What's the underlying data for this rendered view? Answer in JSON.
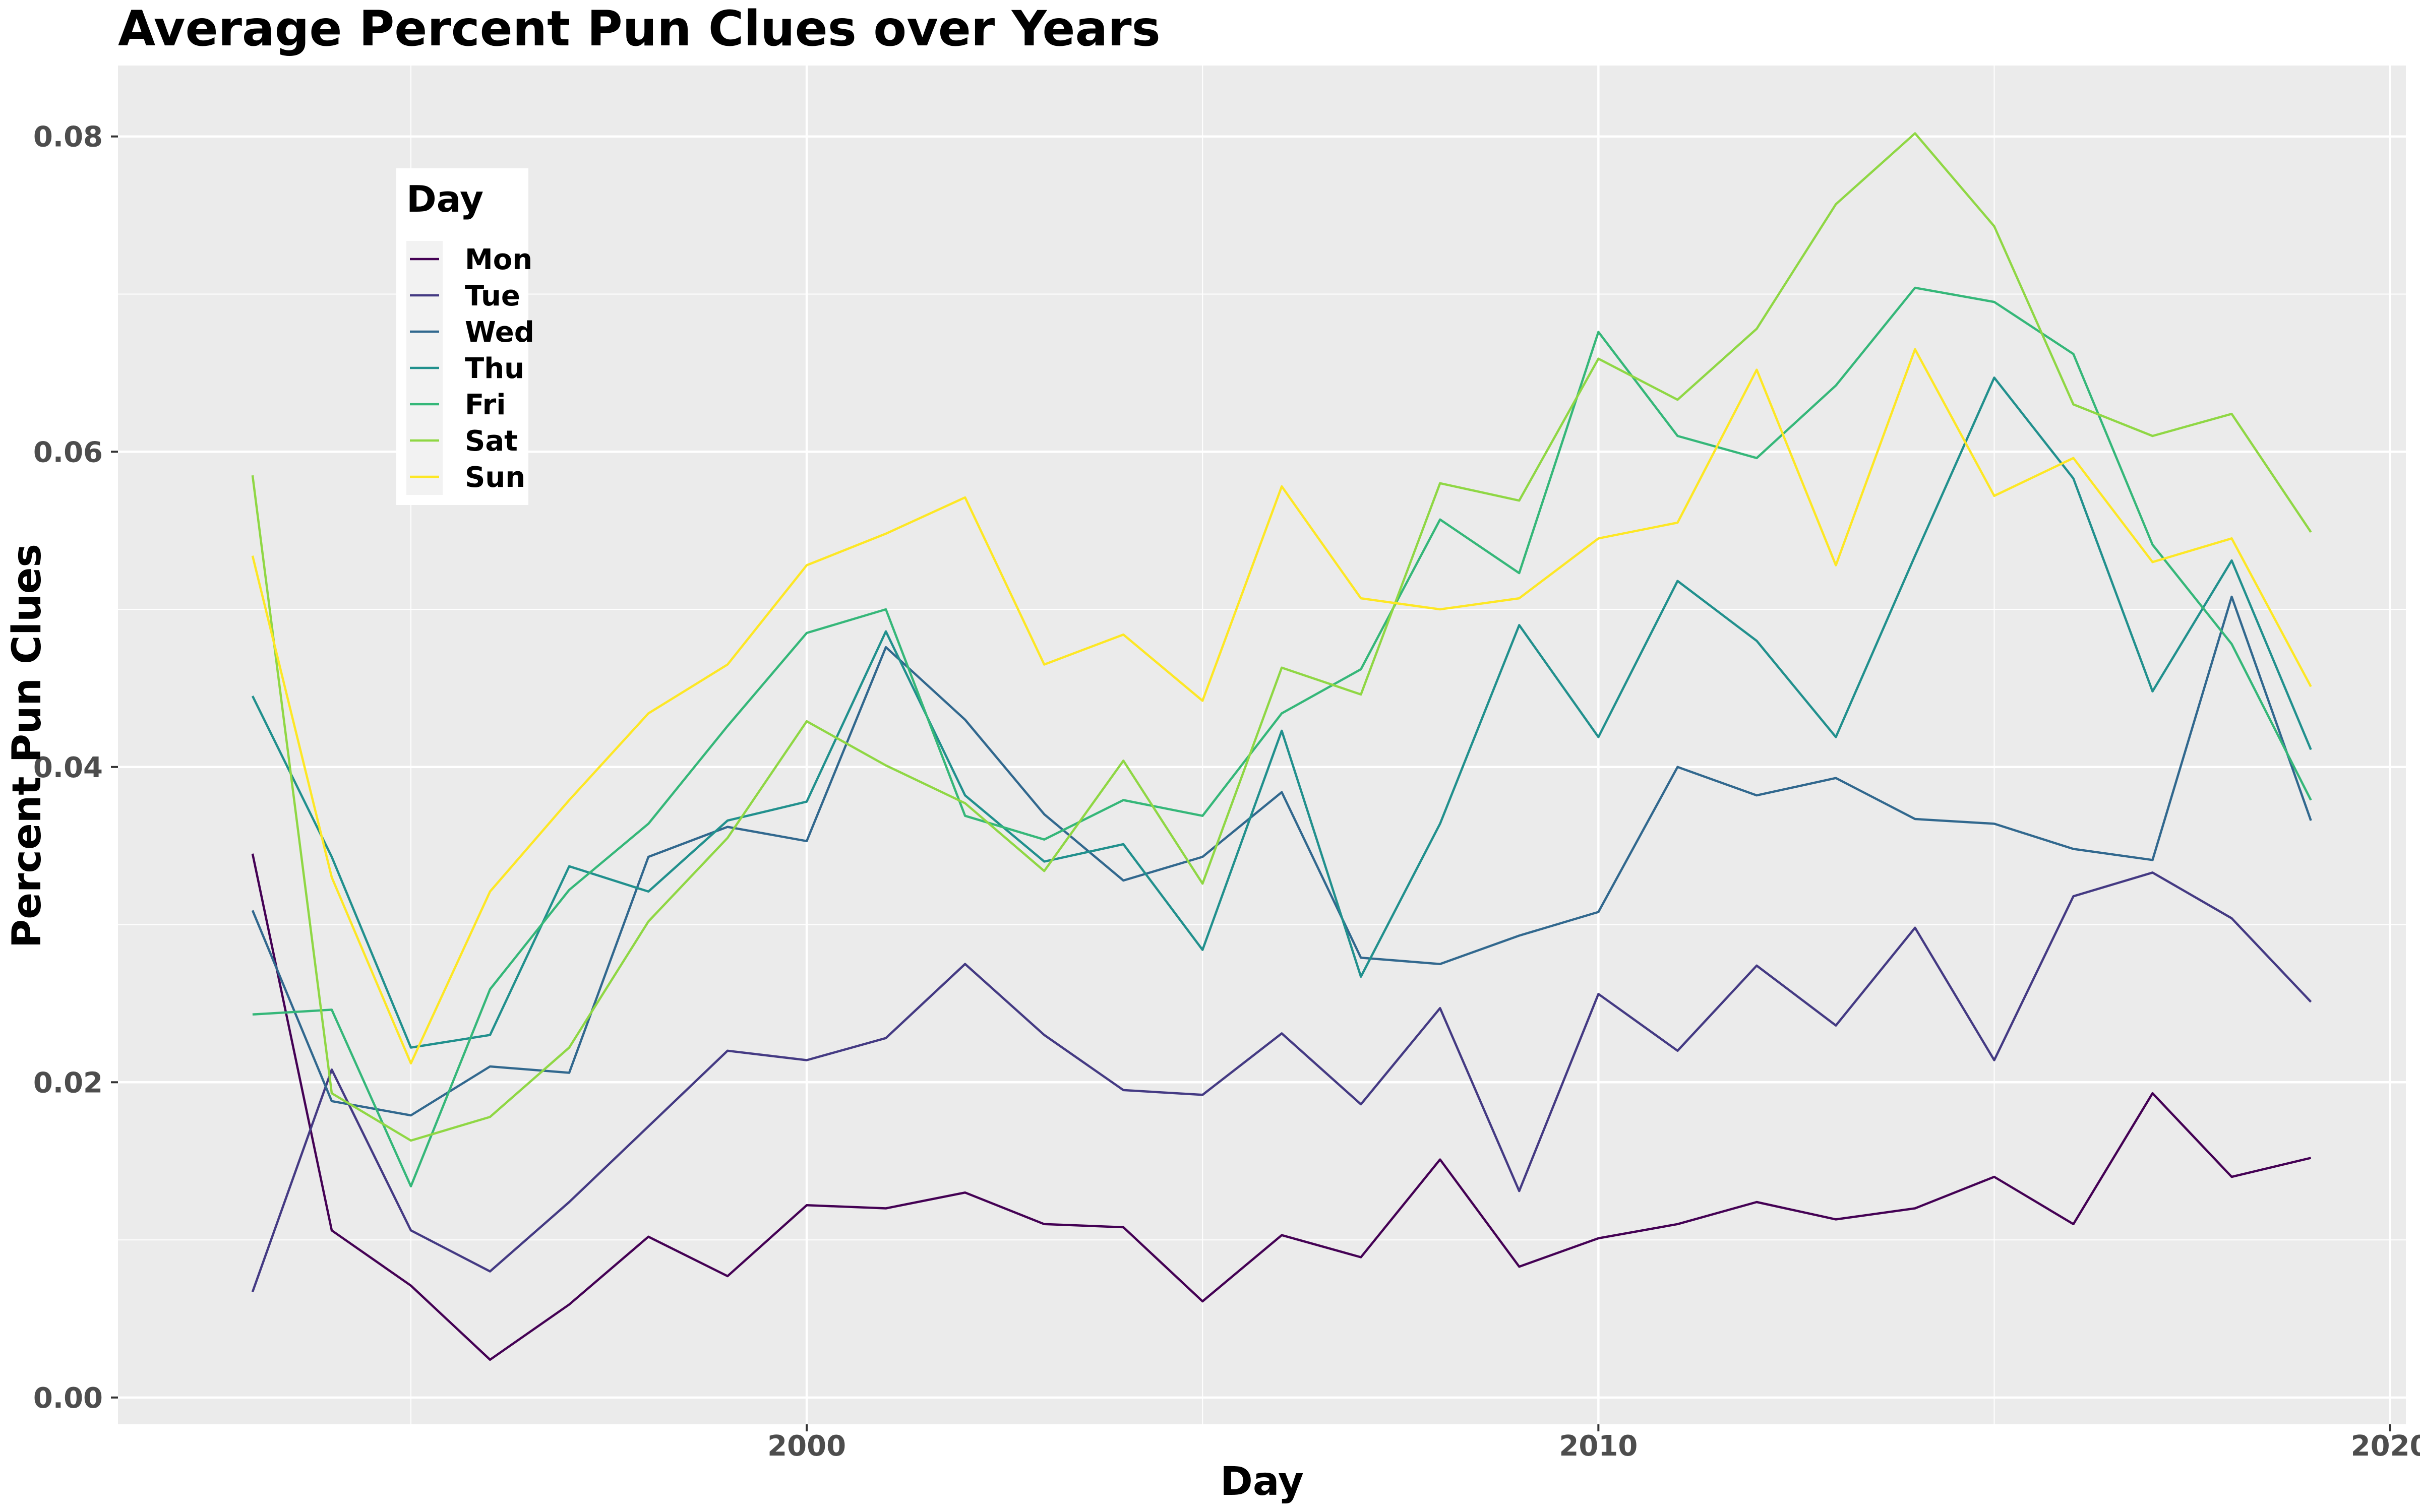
{
  "chart_data": {
    "type": "line",
    "title": "Average Percent Pun Clues over Years",
    "xlabel": "Day",
    "ylabel": "Percent Pun Clues",
    "xlim": [
      1991.3,
      2020.2
    ],
    "ylim": [
      -0.0017,
      0.0845
    ],
    "xticks": [
      2000,
      2010,
      2020
    ],
    "xtick_labels": [
      "2000",
      "2010",
      "2020"
    ],
    "yticks": [
      0.0,
      0.02,
      0.04,
      0.06,
      0.08
    ],
    "ytick_labels": [
      "0.00",
      "0.02",
      "0.04",
      "0.06",
      "0.08"
    ],
    "grid": true,
    "legend": {
      "title": "Day",
      "position": "top-left"
    },
    "x": [
      1993,
      1994,
      1995,
      1996,
      1997,
      1998,
      1999,
      2000,
      2001,
      2002,
      2003,
      2004,
      2005,
      2006,
      2007,
      2008,
      2009,
      2010,
      2011,
      2012,
      2013,
      2014,
      2015,
      2016,
      2017,
      2018,
      2019
    ],
    "series": [
      {
        "name": "Mon",
        "color": "#440154",
        "values": [
          0.0345,
          0.0106,
          0.0071,
          0.0024,
          0.0059,
          0.0102,
          0.0077,
          0.0122,
          0.012,
          0.013,
          0.011,
          0.0108,
          0.0061,
          0.0103,
          0.0089,
          0.0151,
          0.0083,
          0.0101,
          0.011,
          0.0124,
          0.0113,
          0.012,
          0.014,
          0.011,
          0.0193,
          0.014,
          0.0152
        ]
      },
      {
        "name": "Tue",
        "color": "#443A83",
        "values": [
          0.0067,
          0.0208,
          0.0106,
          0.008,
          0.0124,
          0.0172,
          0.022,
          0.0214,
          0.0228,
          0.0275,
          0.023,
          0.0195,
          0.0192,
          0.0231,
          0.0186,
          0.0247,
          0.0131,
          0.0256,
          0.022,
          0.0274,
          0.0236,
          0.0298,
          0.0214,
          0.0318,
          0.0333,
          0.0304,
          0.0251
        ]
      },
      {
        "name": "Wed",
        "color": "#31688E",
        "values": [
          0.0309,
          0.0188,
          0.0179,
          0.021,
          0.0206,
          0.0343,
          0.0362,
          0.0353,
          0.0476,
          0.043,
          0.037,
          0.0328,
          0.0343,
          0.0384,
          0.0279,
          0.0275,
          0.0293,
          0.0308,
          0.04,
          0.0382,
          0.0393,
          0.0367,
          0.0364,
          0.0348,
          0.0341,
          0.0508,
          0.0366
        ]
      },
      {
        "name": "Thu",
        "color": "#21908D",
        "values": [
          0.0445,
          0.0343,
          0.0222,
          0.023,
          0.0337,
          0.0321,
          0.0366,
          0.0378,
          0.0486,
          0.0382,
          0.034,
          0.0351,
          0.0284,
          0.0423,
          0.0267,
          0.0364,
          0.049,
          0.0419,
          0.0518,
          0.048,
          0.0419,
          0.0534,
          0.0647,
          0.0583,
          0.0448,
          0.0531,
          0.0411
        ]
      },
      {
        "name": "Fri",
        "color": "#35B779",
        "values": [
          0.0243,
          0.0246,
          0.0134,
          0.0259,
          0.0322,
          0.0364,
          0.0426,
          0.0485,
          0.05,
          0.0369,
          0.0354,
          0.0379,
          0.0369,
          0.0434,
          0.0462,
          0.0557,
          0.0523,
          0.0676,
          0.061,
          0.0596,
          0.0642,
          0.0704,
          0.0695,
          0.0662,
          0.0541,
          0.0478,
          0.0379
        ]
      },
      {
        "name": "Sat",
        "color": "#8FD744",
        "values": [
          0.0585,
          0.0193,
          0.0163,
          0.0178,
          0.0222,
          0.0302,
          0.0355,
          0.0429,
          0.0401,
          0.0377,
          0.0334,
          0.0404,
          0.0326,
          0.0463,
          0.0446,
          0.058,
          0.0569,
          0.0659,
          0.0633,
          0.0678,
          0.0757,
          0.0802,
          0.0743,
          0.063,
          0.061,
          0.0624,
          0.0549
        ]
      },
      {
        "name": "Sun",
        "color": "#FDE725",
        "values": [
          0.0534,
          0.033,
          0.0212,
          0.0321,
          0.0379,
          0.0434,
          0.0465,
          0.0528,
          0.0548,
          0.0571,
          0.0465,
          0.0484,
          0.0442,
          0.0578,
          0.0507,
          0.05,
          0.0507,
          0.0545,
          0.0555,
          0.0652,
          0.0528,
          0.0665,
          0.0572,
          0.0596,
          0.053,
          0.0545,
          0.0451
        ]
      }
    ]
  }
}
